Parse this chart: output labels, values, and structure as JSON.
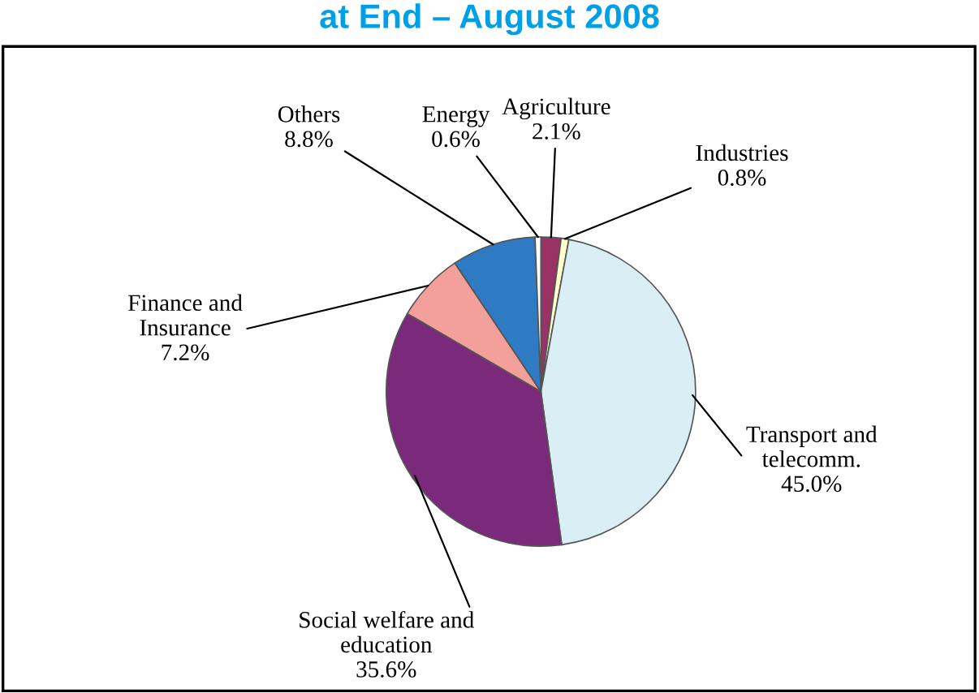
{
  "chart_data": {
    "type": "pie",
    "title": "at End – August 2008",
    "categories": [
      "Agriculture",
      "Industries",
      "Transport and\ntelecomm.",
      "Social welfare and\neducation",
      "Finance and\nInsurance",
      "Others",
      "Energy"
    ],
    "values": [
      2.1,
      0.8,
      45.0,
      35.6,
      7.2,
      8.8,
      0.6
    ],
    "colors": [
      "#993366",
      "#ffffcc",
      "#daeef6",
      "#7b2a7b",
      "#f4a09a",
      "#2e7bc4",
      "#ffffff"
    ],
    "value_labels": [
      "2.1%",
      "0.8%",
      "45.0%",
      "35.6%",
      "7.2%",
      "8.8%",
      "0.6%"
    ],
    "legend": false
  }
}
